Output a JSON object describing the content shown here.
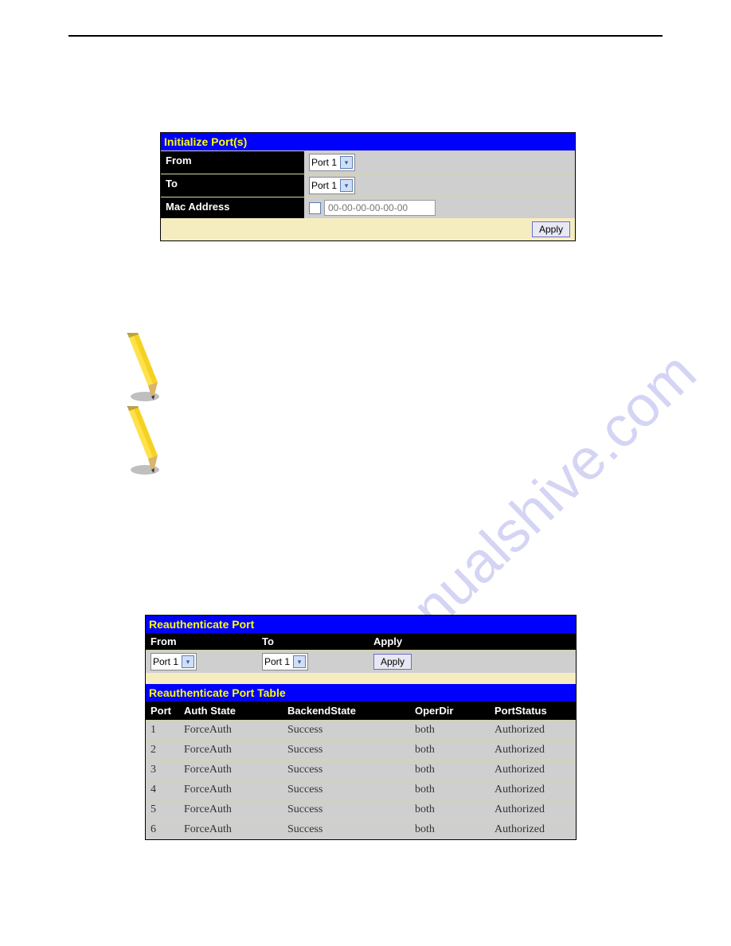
{
  "colors": {
    "header_bg": "#0000ff",
    "header_fg": "#ffff00",
    "label_bg": "#000000",
    "label_fg": "#ffffff",
    "value_bg": "#cfcfcf",
    "cream_bg": "#f5edc0",
    "row_divider": "#d6d6a0",
    "btn_bg": "#e8e8f4",
    "btn_border": "#6b6bcf",
    "watermark_color": "#b8b8ef",
    "pencil_body": "#f5d222",
    "pencil_body_light": "#ffe24a",
    "pencil_eraser": "#6d6d6d",
    "pencil_ferrule": "#bfa33a"
  },
  "watermark": {
    "text": "manualshive.com"
  },
  "init_panel": {
    "title": "Initialize Port(s)",
    "rows": {
      "from": {
        "label": "From",
        "value": "Port 1"
      },
      "to": {
        "label": "To",
        "value": "Port 1"
      },
      "mac": {
        "label": "Mac Address",
        "placeholder": "00-00-00-00-00-00"
      }
    },
    "apply_label": "Apply"
  },
  "reauth_panel": {
    "title": "Reauthenticate Port",
    "columns": {
      "from": "From",
      "to": "To",
      "apply": "Apply"
    },
    "values": {
      "from": "Port 1",
      "to": "Port 1",
      "apply_btn": "Apply"
    },
    "table_title": "Reauthenticate Port Table",
    "table_columns": {
      "port": "Port",
      "auth": "Auth State",
      "back": "BackendState",
      "oper": "OperDir",
      "stat": "PortStatus"
    },
    "rows": [
      {
        "port": "1",
        "auth": "ForceAuth",
        "back": "Success",
        "oper": "both",
        "stat": "Authorized"
      },
      {
        "port": "2",
        "auth": "ForceAuth",
        "back": "Success",
        "oper": "both",
        "stat": "Authorized"
      },
      {
        "port": "3",
        "auth": "ForceAuth",
        "back": "Success",
        "oper": "both",
        "stat": "Authorized"
      },
      {
        "port": "4",
        "auth": "ForceAuth",
        "back": "Success",
        "oper": "both",
        "stat": "Authorized"
      },
      {
        "port": "5",
        "auth": "ForceAuth",
        "back": "Success",
        "oper": "both",
        "stat": "Authorized"
      },
      {
        "port": "6",
        "auth": "ForceAuth",
        "back": "Success",
        "oper": "both",
        "stat": "Authorized"
      }
    ]
  }
}
